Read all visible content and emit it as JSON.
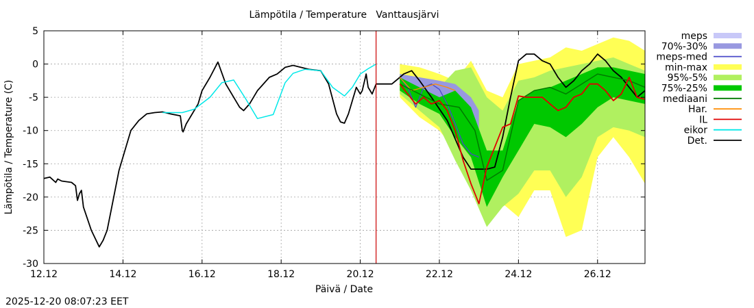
{
  "colors": {
    "meps": "#c8c8f8",
    "band_70_30": "#9898e0",
    "meps_med": "#4848c8",
    "minmax": "#ffff55",
    "band_95_5": "#b0f060",
    "band_75_25": "#00c800",
    "mediaani": "#007a00",
    "har": "#ff8c00",
    "il": "#e00000",
    "eikor": "#00e8e8",
    "det": "#000000",
    "now_line": "#cc0000",
    "grid": "#a0a0a0",
    "axis": "#000000"
  },
  "timestamp": "2025-12-20 08:07:23 EET",
  "chart_data": {
    "type": "line",
    "title": "Lämpötila / Temperature   Vanttausjärvi",
    "xlabel": "Päivä / Date",
    "ylabel": "Lämpötila / Temperature (C)",
    "x_unit": "days since 12.12 00:00",
    "xlim": [
      0,
      15.2
    ],
    "ylim": [
      -30,
      5
    ],
    "yticks": [
      5,
      0,
      -5,
      -10,
      -15,
      -20,
      -25,
      -30
    ],
    "ytick_labels": [
      "5",
      "0",
      "-5",
      "-10",
      "-15",
      "-20",
      "-25",
      "-30"
    ],
    "xticks": [
      0,
      2,
      4,
      6,
      8,
      10,
      12,
      14
    ],
    "xtick_labels": [
      "12.12",
      "14.12",
      "16.12",
      "18.12",
      "20.12",
      "22.12",
      "24.12",
      "26.12"
    ],
    "grid": true,
    "now_marker_x": 8.4,
    "legend": [
      {
        "label": "meps",
        "key": "meps",
        "kind": "box"
      },
      {
        "label": "70%-30%",
        "key": "band_70_30",
        "kind": "box"
      },
      {
        "label": "meps-med",
        "key": "meps_med",
        "kind": "line"
      },
      {
        "label": "min-max",
        "key": "minmax",
        "kind": "box"
      },
      {
        "label": "95%-5%",
        "key": "band_95_5",
        "kind": "box"
      },
      {
        "label": "75%-25%",
        "key": "band_75_25",
        "kind": "box"
      },
      {
        "label": "mediaani",
        "key": "mediaani",
        "kind": "line"
      },
      {
        "label": "Har.",
        "key": "har",
        "kind": "line"
      },
      {
        "label": "IL",
        "key": "il",
        "kind": "line"
      },
      {
        "label": "eikor",
        "key": "eikor",
        "kind": "line"
      },
      {
        "label": "Det.",
        "key": "det",
        "kind": "line"
      }
    ],
    "bands": [
      {
        "name": "min-max",
        "key": "minmax",
        "x": [
          9.0,
          9.5,
          10.0,
          10.4,
          10.8,
          11.2,
          11.6,
          12.0,
          12.4,
          12.8,
          13.2,
          13.6,
          14.0,
          14.4,
          14.8,
          15.2
        ],
        "upper": [
          0.0,
          -0.5,
          -1.5,
          -2.5,
          0.5,
          -4.0,
          -5.0,
          0.0,
          0.5,
          1.0,
          2.5,
          2.0,
          3.0,
          4.0,
          3.5,
          2.0
        ],
        "lower": [
          -5.0,
          -8.0,
          -10.0,
          -13.0,
          -16.5,
          -23.5,
          -21.0,
          -23.0,
          -19.0,
          -19.0,
          -26.0,
          -25.0,
          -14.0,
          -11.0,
          -14.0,
          -18.0
        ]
      },
      {
        "name": "95%-5%",
        "key": "band_95_5",
        "x": [
          9.0,
          9.5,
          10.0,
          10.4,
          10.8,
          11.2,
          11.6,
          12.0,
          12.4,
          12.8,
          13.2,
          13.6,
          14.0,
          14.4,
          14.8,
          15.2
        ],
        "upper": [
          -1.5,
          -2.5,
          -3.5,
          -1.0,
          -0.5,
          -5.0,
          -7.0,
          -2.5,
          -2.0,
          -1.0,
          -0.5,
          0.0,
          0.5,
          1.0,
          0.0,
          -1.0
        ],
        "lower": [
          -4.5,
          -7.0,
          -9.5,
          -14.5,
          -19.0,
          -24.5,
          -21.5,
          -19.5,
          -16.0,
          -16.0,
          -20.0,
          -17.0,
          -11.0,
          -9.5,
          -10.0,
          -11.0
        ]
      },
      {
        "name": "70%-30%",
        "key": "band_70_30",
        "x": [
          9.0,
          9.5,
          10.0,
          10.4,
          10.8,
          11.0
        ],
        "upper": [
          -1.5,
          -2.0,
          -2.5,
          -3.0,
          -5.0,
          -7.0
        ],
        "lower": [
          -3.0,
          -5.0,
          -6.5,
          -10.0,
          -13.0,
          -14.0
        ]
      },
      {
        "name": "75%-25%",
        "key": "band_75_25",
        "x": [
          9.0,
          9.5,
          10.0,
          10.4,
          10.8,
          11.2,
          11.6,
          12.0,
          12.4,
          12.8,
          13.2,
          13.6,
          14.0,
          14.4,
          14.8,
          15.2
        ],
        "upper": [
          -2.0,
          -3.5,
          -5.0,
          -4.0,
          -6.5,
          -13.0,
          -13.0,
          -5.5,
          -4.0,
          -3.5,
          -2.5,
          -1.5,
          -0.5,
          -0.5,
          -1.0,
          -1.5
        ],
        "lower": [
          -4.0,
          -6.0,
          -7.5,
          -11.0,
          -14.0,
          -21.5,
          -17.0,
          -13.0,
          -9.0,
          -9.5,
          -11.0,
          -9.0,
          -6.5,
          -5.0,
          -5.5,
          -6.0
        ]
      }
    ],
    "series": [
      {
        "name": "Det.",
        "key": "det",
        "width": 1.8,
        "x": [
          0.0,
          0.15,
          0.3,
          0.35,
          0.45,
          0.7,
          0.8,
          0.85,
          0.9,
          0.95,
          1.0,
          1.2,
          1.4,
          1.5,
          1.6,
          1.7,
          1.9,
          2.2,
          2.4,
          2.6,
          2.8,
          3.0,
          3.2,
          3.45,
          3.5,
          3.52,
          3.6,
          3.9,
          4.0,
          4.2,
          4.4,
          4.6,
          4.8,
          4.95,
          5.05,
          5.2,
          5.4,
          5.7,
          5.9,
          6.1,
          6.3,
          6.5,
          6.7,
          7.0,
          7.2,
          7.4,
          7.5,
          7.6,
          7.7,
          7.9,
          8.0,
          8.05,
          8.15,
          8.2,
          8.25,
          8.3,
          8.4,
          8.8,
          9.0,
          9.1,
          9.3,
          9.5,
          9.8,
          10.2,
          10.6,
          10.8,
          11.2,
          11.4,
          11.6,
          11.8,
          12.0,
          12.2,
          12.4,
          12.6,
          12.8,
          13.0,
          13.2,
          13.4,
          13.6,
          13.8,
          14.0,
          14.2,
          14.4,
          14.6,
          14.8,
          15.0,
          15.2
        ],
        "y": [
          -17.2,
          -17.0,
          -17.8,
          -17.3,
          -17.6,
          -17.8,
          -18.3,
          -20.5,
          -19.5,
          -19.0,
          -21.5,
          -25.0,
          -27.5,
          -26.5,
          -25.0,
          -22.0,
          -16.0,
          -10.0,
          -8.5,
          -7.5,
          -7.3,
          -7.2,
          -7.5,
          -7.8,
          -10.0,
          -10.2,
          -9.0,
          -6.0,
          -4.0,
          -2.0,
          0.3,
          -3.0,
          -5.0,
          -6.5,
          -7.0,
          -6.0,
          -4.0,
          -2.0,
          -1.5,
          -0.5,
          -0.2,
          -0.5,
          -0.8,
          -1.0,
          -3.0,
          -7.5,
          -8.7,
          -8.9,
          -7.5,
          -3.5,
          -4.5,
          -4.0,
          -1.5,
          -3.5,
          -4.0,
          -4.5,
          -3.0,
          -3.0,
          -2.0,
          -1.5,
          -1.0,
          -2.5,
          -5.0,
          -8.5,
          -14.0,
          -15.8,
          -15.8,
          -15.5,
          -11.0,
          -5.0,
          0.5,
          1.5,
          1.5,
          0.5,
          0.0,
          -2.0,
          -3.5,
          -2.5,
          -1.0,
          0.0,
          1.5,
          0.5,
          -1.0,
          -2.0,
          -3.5,
          -5.0,
          -4.0
        ]
      },
      {
        "name": "eikor",
        "key": "eikor",
        "width": 1.5,
        "x": [
          3.0,
          3.5,
          3.8,
          4.2,
          4.5,
          4.8,
          5.1,
          5.4,
          5.8,
          6.1,
          6.3,
          6.6,
          7.0,
          7.3,
          7.6,
          7.8,
          8.0,
          8.2,
          8.4
        ],
        "y": [
          -7.3,
          -7.3,
          -6.8,
          -5.0,
          -2.8,
          -2.4,
          -5.2,
          -8.2,
          -7.6,
          -2.8,
          -1.4,
          -0.8,
          -1.0,
          -3.5,
          -4.8,
          -3.5,
          -1.5,
          -0.7,
          0.0
        ]
      },
      {
        "name": "meps-med",
        "key": "meps_med",
        "width": 1.3,
        "x": [
          9.0,
          9.2,
          9.4,
          9.6,
          9.8,
          10.0,
          10.2,
          10.4,
          10.6,
          10.8,
          11.0
        ],
        "y": [
          -2.0,
          -3.5,
          -6.5,
          -3.5,
          -3.0,
          -3.8,
          -6.0,
          -9.0,
          -12.0,
          -13.5,
          -14.0
        ]
      },
      {
        "name": "Har.",
        "key": "har",
        "width": 1.3,
        "x": [
          9.0,
          9.3,
          9.6,
          9.9,
          10.2,
          10.4
        ],
        "y": [
          -2.0,
          -4.0,
          -3.5,
          -3.0,
          -3.5,
          -4.0
        ]
      },
      {
        "name": "mediaani",
        "key": "mediaani",
        "width": 1.5,
        "x": [
          9.0,
          9.5,
          10.0,
          10.5,
          10.9,
          11.2,
          11.6,
          12.0,
          12.4,
          12.8,
          13.2,
          13.6,
          14.0,
          14.4,
          14.8,
          15.2
        ],
        "y": [
          -3.0,
          -4.5,
          -6.0,
          -6.5,
          -10.0,
          -17.5,
          -16.0,
          -5.5,
          -4.0,
          -3.5,
          -4.5,
          -3.0,
          -1.5,
          -2.0,
          -2.5,
          -3.5
        ]
      },
      {
        "name": "IL",
        "key": "il",
        "width": 1.8,
        "x": [
          9.0,
          9.2,
          9.4,
          9.6,
          9.8,
          10.0,
          10.2,
          10.4,
          10.6,
          10.8,
          11.0,
          11.2,
          11.4,
          11.6,
          11.8,
          12.0,
          12.2,
          12.4,
          12.6,
          12.8,
          13.0,
          13.2,
          13.4,
          13.6,
          13.8,
          14.0,
          14.2,
          14.4,
          14.6,
          14.8,
          15.0,
          15.2
        ],
        "y": [
          -3.0,
          -4.5,
          -6.0,
          -5.0,
          -6.0,
          -5.5,
          -7.0,
          -10.0,
          -14.5,
          -18.0,
          -21.0,
          -15.5,
          -12.5,
          -9.5,
          -9.0,
          -4.8,
          -5.0,
          -5.0,
          -5.0,
          -6.0,
          -7.0,
          -6.5,
          -5.0,
          -4.5,
          -3.0,
          -3.0,
          -4.0,
          -5.5,
          -4.5,
          -2.0,
          -5.0,
          -5.3
        ]
      }
    ]
  }
}
